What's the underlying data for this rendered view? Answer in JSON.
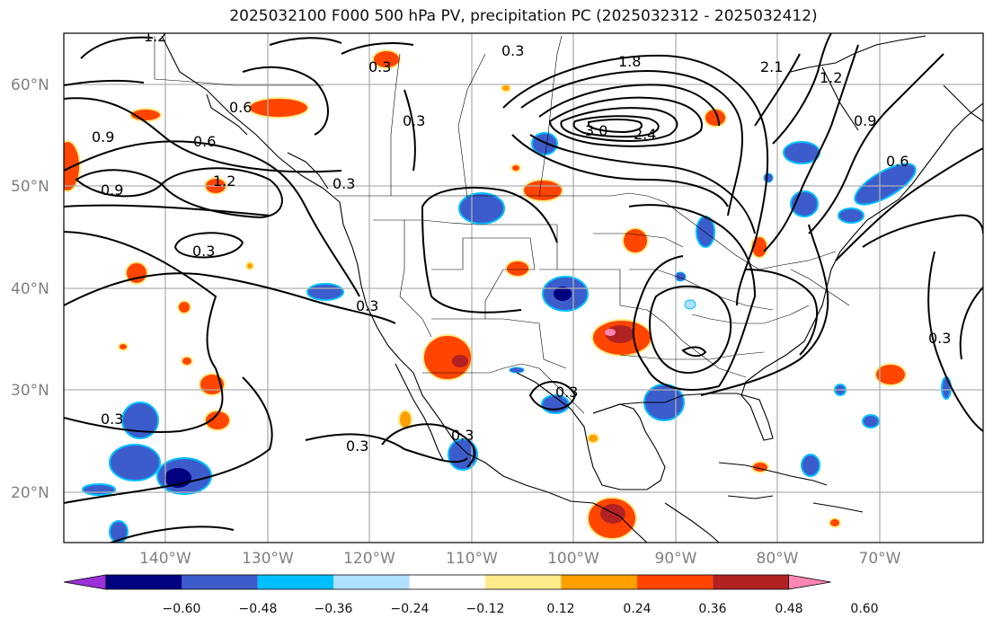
{
  "title": "2025032100 F000 500 hPa PV, precipitation PC (2025032312 - 2025032412)",
  "lat_labels": [
    "60°N",
    "50°N",
    "40°N",
    "30°N",
    "20°N"
  ],
  "lon_labels": [
    "140°W",
    "130°W",
    "120°W",
    "110°W",
    "100°W",
    "90°W",
    "80°W",
    "70°W"
  ],
  "colorbar": {
    "colors": [
      "#9b30d9",
      "#000080",
      "#3c5ccc",
      "#00bfff",
      "#b0e0ff",
      "#ffffff",
      "#ffeb8a",
      "#ff9f00",
      "#ff4500",
      "#b22222",
      "#ff85b4"
    ],
    "tick_labels": [
      "−0.60",
      "−0.48",
      "−0.36",
      "−0.24",
      "−0.12",
      "0.12",
      "0.24",
      "0.36",
      "0.48",
      "0.60"
    ]
  },
  "contour_labels": [
    "1.2",
    "0.9",
    "0.6",
    "0.9",
    "1.2",
    "0.3",
    "0.3",
    "0.3",
    "0.3",
    "0.3",
    "0.3",
    "0.3",
    "1.8",
    "2.1",
    "3.0",
    "2.4",
    "1.2",
    "0.9",
    "0.6",
    "0.3",
    "0.6",
    "0.3",
    "0.3",
    "0.3"
  ]
}
